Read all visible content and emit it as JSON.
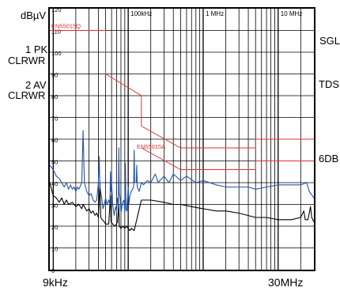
{
  "chart_data": {
    "type": "line",
    "x_scale": "log",
    "xlim_hz": [
      9000,
      30000000
    ],
    "ylim": [
      0,
      120
    ],
    "y_unit": "dBµV",
    "grid": true,
    "x_axis_start_label": "9kHz",
    "x_axis_end_label": "30MHz",
    "frequency_labels": [
      {
        "label": "100kHz",
        "hz": 100000
      },
      {
        "label": "1 MHz",
        "hz": 1000000
      },
      {
        "label": "10 MHz",
        "hz": 10000000
      }
    ],
    "y_ticks": [
      0,
      10,
      20,
      30,
      40,
      50,
      60,
      70,
      80,
      90,
      100,
      110,
      120
    ],
    "left_labels": {
      "unit": "dBµV",
      "trace1": [
        "1 PK",
        "CLRWR"
      ],
      "trace2": [
        "2 AV",
        "CLRWR"
      ]
    },
    "right_labels": [
      "SGL",
      "TDS",
      "6DB"
    ],
    "colors": {
      "limit": "#e03030",
      "peak": "#2255aa",
      "average": "#000000",
      "grid": "#000000"
    },
    "limit_lines": [
      {
        "name": "EN55015Q",
        "points": [
          [
            9000,
            110
          ],
          [
            50000,
            110
          ],
          [
            50000,
            90
          ],
          [
            150000,
            80
          ],
          [
            150000,
            66
          ],
          [
            500000,
            56
          ],
          [
            5000000,
            56
          ],
          [
            5000000,
            60
          ],
          [
            30000000,
            60
          ]
        ]
      },
      {
        "name": "EN55015A",
        "points": [
          [
            150000,
            56
          ],
          [
            500000,
            46
          ],
          [
            5000000,
            46
          ],
          [
            5000000,
            50
          ],
          [
            30000000,
            50
          ]
        ]
      }
    ],
    "series": [
      {
        "name": "1 PK",
        "color": "#2255aa",
        "points": [
          [
            9000,
            48
          ],
          [
            10000,
            46
          ],
          [
            11000,
            43
          ],
          [
            12000,
            42
          ],
          [
            13000,
            40
          ],
          [
            14000,
            38
          ],
          [
            15000,
            40
          ],
          [
            16000,
            37
          ],
          [
            17000,
            39
          ],
          [
            18000,
            37
          ],
          [
            19000,
            38
          ],
          [
            20000,
            36
          ],
          [
            21000,
            38
          ],
          [
            22000,
            37
          ],
          [
            24000,
            40
          ],
          [
            25000,
            64
          ],
          [
            26000,
            40
          ],
          [
            27000,
            38
          ],
          [
            28000,
            36
          ],
          [
            30000,
            34
          ],
          [
            32000,
            35
          ],
          [
            34000,
            32
          ],
          [
            36000,
            31
          ],
          [
            38000,
            32
          ],
          [
            40000,
            40
          ],
          [
            41000,
            52
          ],
          [
            42000,
            38
          ],
          [
            44000,
            34
          ],
          [
            46000,
            28
          ],
          [
            48000,
            30
          ],
          [
            50000,
            33
          ],
          [
            52000,
            30
          ],
          [
            55000,
            32
          ],
          [
            57000,
            30
          ],
          [
            58000,
            45
          ],
          [
            59000,
            36
          ],
          [
            60000,
            40
          ],
          [
            62000,
            30
          ],
          [
            65000,
            25
          ],
          [
            68000,
            29
          ],
          [
            70000,
            27
          ],
          [
            72000,
            33
          ],
          [
            74000,
            30
          ],
          [
            75000,
            56
          ],
          [
            76000,
            35
          ],
          [
            78000,
            33
          ],
          [
            80000,
            26
          ],
          [
            84000,
            31
          ],
          [
            88000,
            32
          ],
          [
            90000,
            26
          ],
          [
            92000,
            49
          ],
          [
            93000,
            28
          ],
          [
            96000,
            27
          ],
          [
            100000,
            38
          ],
          [
            102000,
            30
          ],
          [
            105000,
            34
          ],
          [
            110000,
            36
          ],
          [
            118000,
            38
          ],
          [
            120000,
            55
          ],
          [
            122000,
            40
          ],
          [
            128000,
            40
          ],
          [
            130000,
            48
          ],
          [
            132000,
            38
          ],
          [
            140000,
            36
          ],
          [
            150000,
            40
          ],
          [
            160000,
            39
          ],
          [
            180000,
            41
          ],
          [
            200000,
            40
          ],
          [
            230000,
            44
          ],
          [
            250000,
            40
          ],
          [
            300000,
            43
          ],
          [
            350000,
            40
          ],
          [
            400000,
            44
          ],
          [
            500000,
            41
          ],
          [
            600000,
            43
          ],
          [
            800000,
            40
          ],
          [
            1000000,
            41
          ],
          [
            1500000,
            39
          ],
          [
            2000000,
            38
          ],
          [
            3000000,
            38
          ],
          [
            4000000,
            38
          ],
          [
            5000000,
            37
          ],
          [
            7000000,
            38
          ],
          [
            10000000,
            39
          ],
          [
            15000000,
            39
          ],
          [
            20000000,
            39
          ],
          [
            24000000,
            40
          ],
          [
            26000000,
            36
          ],
          [
            30000000,
            33
          ]
        ]
      },
      {
        "name": "2 AV",
        "color": "#000000",
        "points": [
          [
            9000,
            40
          ],
          [
            10000,
            34
          ],
          [
            11000,
            33
          ],
          [
            12000,
            31
          ],
          [
            13000,
            33
          ],
          [
            14000,
            30
          ],
          [
            15000,
            32
          ],
          [
            16000,
            30
          ],
          [
            18000,
            31
          ],
          [
            20000,
            29
          ],
          [
            22000,
            30
          ],
          [
            24000,
            28
          ],
          [
            25000,
            30
          ],
          [
            26000,
            29
          ],
          [
            28000,
            27
          ],
          [
            30000,
            28
          ],
          [
            32000,
            26
          ],
          [
            34000,
            27
          ],
          [
            36000,
            25
          ],
          [
            38000,
            26
          ],
          [
            40000,
            24
          ],
          [
            42000,
            40
          ],
          [
            43000,
            24
          ],
          [
            45000,
            23
          ],
          [
            48000,
            22
          ],
          [
            50000,
            21
          ],
          [
            55000,
            21
          ],
          [
            58000,
            34
          ],
          [
            59000,
            22
          ],
          [
            62000,
            21
          ],
          [
            66000,
            20
          ],
          [
            70000,
            21
          ],
          [
            72000,
            22
          ],
          [
            75000,
            30
          ],
          [
            76000,
            20
          ],
          [
            80000,
            19
          ],
          [
            85000,
            20
          ],
          [
            90000,
            19
          ],
          [
            95000,
            20
          ],
          [
            100000,
            19
          ],
          [
            105000,
            18
          ],
          [
            110000,
            19
          ],
          [
            120000,
            18
          ],
          [
            150000,
            32
          ],
          [
            200000,
            32
          ],
          [
            300000,
            31
          ],
          [
            400000,
            30
          ],
          [
            500000,
            30
          ],
          [
            700000,
            29
          ],
          [
            1000000,
            28
          ],
          [
            1500000,
            27
          ],
          [
            2000000,
            27
          ],
          [
            3000000,
            26
          ],
          [
            5000000,
            24
          ],
          [
            7000000,
            24
          ],
          [
            10000000,
            23
          ],
          [
            15000000,
            23
          ],
          [
            20000000,
            24
          ],
          [
            22000000,
            27
          ],
          [
            23000000,
            23
          ],
          [
            25000000,
            23
          ],
          [
            27000000,
            29
          ],
          [
            28000000,
            24
          ],
          [
            30000000,
            22
          ]
        ]
      }
    ]
  }
}
